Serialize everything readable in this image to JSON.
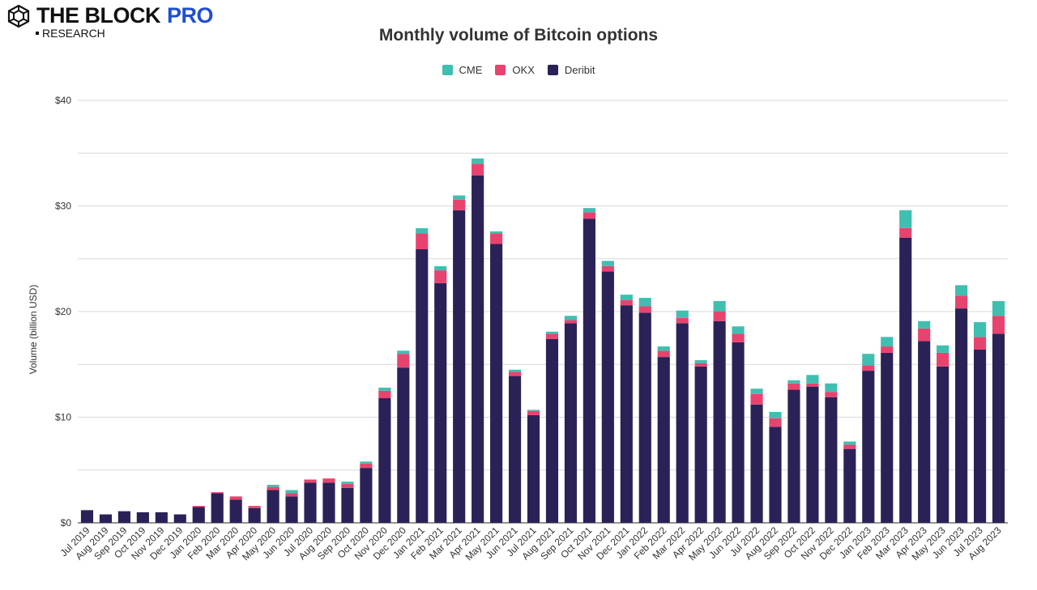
{
  "brand": {
    "name": "THE BLOCK",
    "pro": "PRO",
    "sub": "RESEARCH"
  },
  "colors": {
    "CME": "#3fbfb0",
    "OKX": "#e8436f",
    "Deribit": "#2a2257",
    "grid": "#d9d9d9",
    "text": "#333333"
  },
  "chart_data": {
    "type": "bar",
    "stacked": true,
    "title": "Monthly volume of Bitcoin options",
    "xlabel": "",
    "ylabel": "Volume (billion USD)",
    "ylim": [
      0,
      40
    ],
    "yticks": [
      0,
      10,
      20,
      30,
      40
    ],
    "ytick_labels": [
      "$0",
      "$10",
      "$20",
      "$30",
      "$40"
    ],
    "legend_position": "top-center",
    "categories": [
      "Jul 2019",
      "Aug 2019",
      "Sep 2019",
      "Oct 2019",
      "Nov 2019",
      "Dec 2019",
      "Jan 2020",
      "Feb 2020",
      "Mar 2020",
      "Apr 2020",
      "May 2020",
      "Jun 2020",
      "Jul 2020",
      "Aug 2020",
      "Sep 2020",
      "Oct 2020",
      "Nov 2020",
      "Dec 2020",
      "Jan 2021",
      "Feb 2021",
      "Mar 2021",
      "Apr 2021",
      "May 2021",
      "Jun 2021",
      "Jul 2021",
      "Aug 2021",
      "Sep 2021",
      "Oct 2021",
      "Nov 2021",
      "Dec 2021",
      "Jan 2022",
      "Feb 2022",
      "Mar 2022",
      "Apr 2022",
      "May 2022",
      "Jun 2022",
      "Jul 2022",
      "Aug 2022",
      "Sep 2022",
      "Oct 2022",
      "Nov 2022",
      "Dec 2022",
      "Jan 2023",
      "Feb 2023",
      "Mar 2023",
      "Apr 2023",
      "May 2023",
      "Jun 2023",
      "Jul 2023",
      "Aug 2023"
    ],
    "series": [
      {
        "name": "Deribit",
        "values": [
          1.2,
          0.8,
          1.1,
          1.0,
          1.0,
          0.8,
          1.5,
          2.8,
          2.2,
          1.4,
          3.1,
          2.5,
          3.8,
          3.8,
          3.3,
          5.2,
          11.8,
          14.7,
          25.9,
          22.7,
          29.6,
          32.9,
          26.4,
          13.9,
          10.2,
          17.4,
          18.9,
          28.8,
          23.8,
          20.6,
          19.9,
          15.7,
          18.9,
          14.8,
          19.1,
          17.1,
          11.2,
          9.1,
          12.6,
          12.9,
          11.9,
          7.0,
          14.4,
          16.1,
          27.0,
          17.2,
          14.8,
          20.3,
          16.4,
          17.9
        ]
      },
      {
        "name": "OKX",
        "values": [
          0,
          0,
          0,
          0,
          0,
          0,
          0.1,
          0.1,
          0.3,
          0.2,
          0.3,
          0.3,
          0.3,
          0.4,
          0.4,
          0.4,
          0.7,
          1.3,
          1.5,
          1.2,
          1.0,
          1.1,
          1.0,
          0.4,
          0.4,
          0.5,
          0.3,
          0.6,
          0.5,
          0.5,
          0.6,
          0.6,
          0.5,
          0.3,
          0.9,
          0.8,
          1.0,
          0.8,
          0.6,
          0.3,
          0.5,
          0.4,
          0.5,
          0.6,
          0.9,
          1.2,
          1.3,
          1.2,
          1.2,
          1.7
        ]
      },
      {
        "name": "CME",
        "values": [
          0,
          0,
          0,
          0,
          0,
          0,
          0,
          0,
          0,
          0,
          0.2,
          0.3,
          0,
          0,
          0.2,
          0.2,
          0.3,
          0.3,
          0.5,
          0.4,
          0.4,
          0.5,
          0.2,
          0.2,
          0.1,
          0.2,
          0.4,
          0.4,
          0.5,
          0.5,
          0.8,
          0.4,
          0.7,
          0.3,
          1.0,
          0.7,
          0.5,
          0.6,
          0.3,
          0.8,
          0.8,
          0.3,
          1.1,
          0.9,
          1.7,
          0.7,
          0.7,
          1.0,
          1.4,
          1.4
        ]
      }
    ],
    "legend_order": [
      "CME",
      "OKX",
      "Deribit"
    ]
  }
}
